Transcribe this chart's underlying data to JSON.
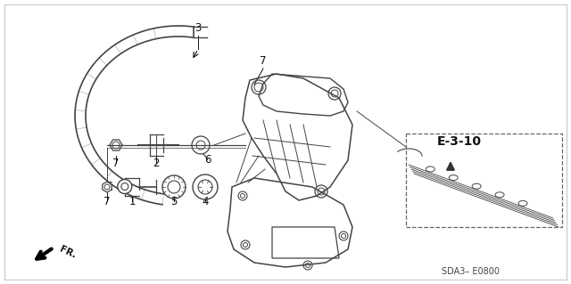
{
  "bg_color": "#ffffff",
  "ref_label": "E-3-10",
  "code_label": "SDA3– E0800",
  "fr_label": "FR.",
  "lc": "#444444",
  "tc": "#111111",
  "figsize": [
    6.4,
    3.19
  ],
  "dpi": 100,
  "tube_color": "#666666",
  "bracket_color": "#555555"
}
